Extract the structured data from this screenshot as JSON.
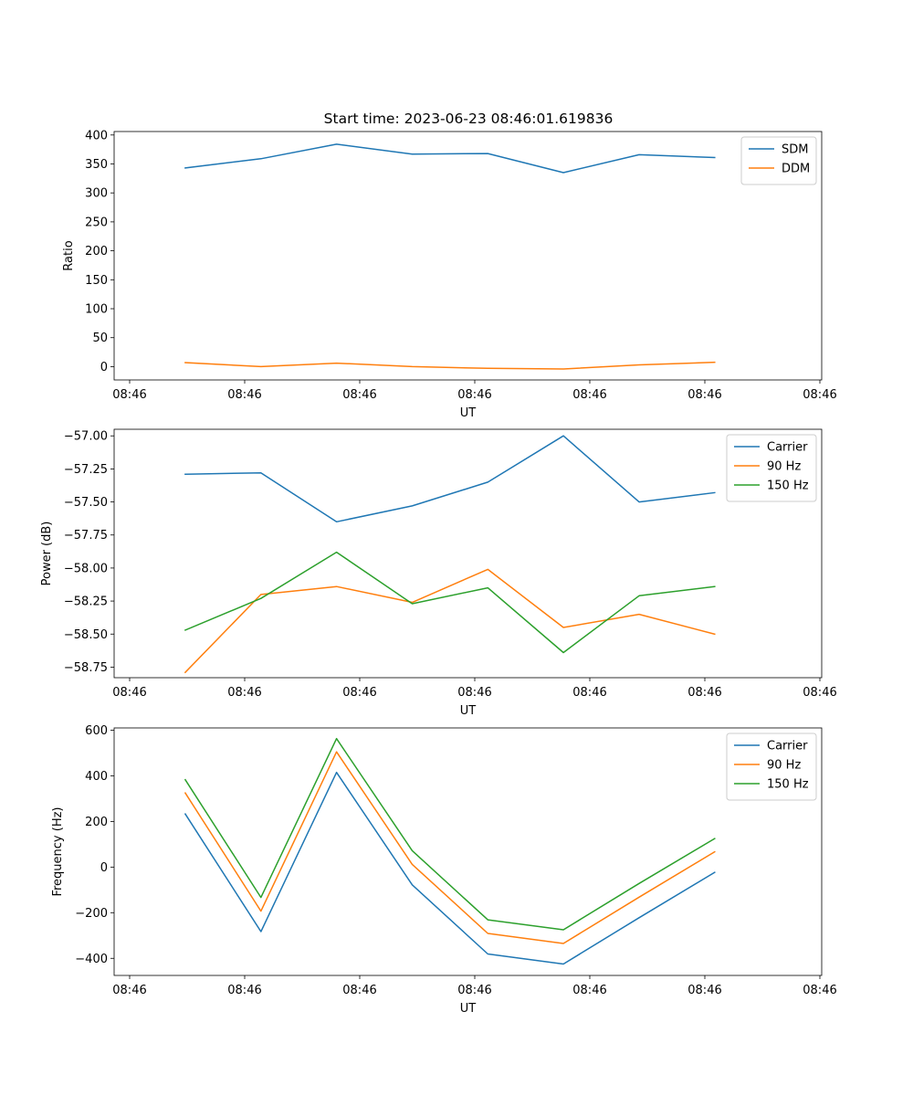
{
  "figure": {
    "title": "Start time: 2023-06-23 08:46:01.619836"
  },
  "chart_data": [
    {
      "type": "line",
      "title": "Start time: 2023-06-23 08:46:01.619836",
      "xlabel": "UT",
      "ylabel": "Ratio",
      "x_tick_labels": [
        "08:46",
        "08:46",
        "08:46",
        "08:46",
        "08:46",
        "08:46",
        "08:46"
      ],
      "y_ticks": [
        0,
        50,
        100,
        150,
        200,
        250,
        300,
        350,
        400
      ],
      "y_tick_labels": [
        "0",
        "50",
        "100",
        "150",
        "200",
        "250",
        "300",
        "350",
        "400"
      ],
      "ylim": [
        -23,
        406
      ],
      "grid": false,
      "legend_position": "top-right",
      "series": [
        {
          "name": "SDM",
          "color": "#1f77b4",
          "values": [
            343,
            359,
            384,
            367,
            368,
            335,
            366,
            361
          ]
        },
        {
          "name": "DDM",
          "color": "#ff7f0e",
          "values": [
            7,
            0,
            6,
            0,
            -3,
            -4,
            3,
            7.5
          ]
        }
      ]
    },
    {
      "type": "line",
      "title": "",
      "xlabel": "UT",
      "ylabel": "Power (dB)",
      "x_tick_labels": [
        "08:46",
        "08:46",
        "08:46",
        "08:46",
        "08:46",
        "08:46",
        "08:46"
      ],
      "y_ticks": [
        -58.75,
        -58.5,
        -58.25,
        -58.0,
        -57.75,
        -57.5,
        -57.25,
        -57.0
      ],
      "y_tick_labels": [
        "−58.75",
        "−58.50",
        "−58.25",
        "−58.00",
        "−57.75",
        "−57.50",
        "−57.25",
        "−57.00"
      ],
      "ylim": [
        -58.83,
        -56.95
      ],
      "grid": false,
      "legend_position": "top-right",
      "series": [
        {
          "name": "Carrier",
          "color": "#1f77b4",
          "values": [
            -57.29,
            -57.28,
            -57.65,
            -57.53,
            -57.35,
            -57.0,
            -57.5,
            -57.43
          ]
        },
        {
          "name": "90 Hz",
          "color": "#ff7f0e",
          "values": [
            -58.79,
            -58.2,
            -58.14,
            -58.26,
            -58.01,
            -58.45,
            -58.35,
            -58.5
          ]
        },
        {
          "name": "150 Hz",
          "color": "#2ca02c",
          "values": [
            -58.47,
            -58.23,
            -57.88,
            -58.27,
            -58.15,
            -58.64,
            -58.21,
            -58.14
          ]
        }
      ]
    },
    {
      "type": "line",
      "title": "",
      "xlabel": "UT",
      "ylabel": "Frequency (Hz)",
      "x_tick_labels": [
        "08:46",
        "08:46",
        "08:46",
        "08:46",
        "08:46",
        "08:46",
        "08:46"
      ],
      "y_ticks": [
        -400,
        -200,
        0,
        200,
        400,
        600
      ],
      "y_tick_labels": [
        "−400",
        "−200",
        "0",
        "200",
        "400",
        "600"
      ],
      "ylim": [
        -475,
        610
      ],
      "grid": false,
      "legend_position": "top-right",
      "series": [
        {
          "name": "Carrier",
          "color": "#1f77b4",
          "values": [
            233,
            -283,
            415,
            -78,
            -381,
            -425,
            -222,
            -23
          ]
        },
        {
          "name": "90 Hz",
          "color": "#ff7f0e",
          "values": [
            325,
            -193,
            505,
            12,
            -291,
            -335,
            -132,
            67
          ]
        },
        {
          "name": "150 Hz",
          "color": "#2ca02c",
          "values": [
            383,
            -133,
            563,
            72,
            -231,
            -275,
            -72,
            125
          ]
        }
      ]
    }
  ]
}
